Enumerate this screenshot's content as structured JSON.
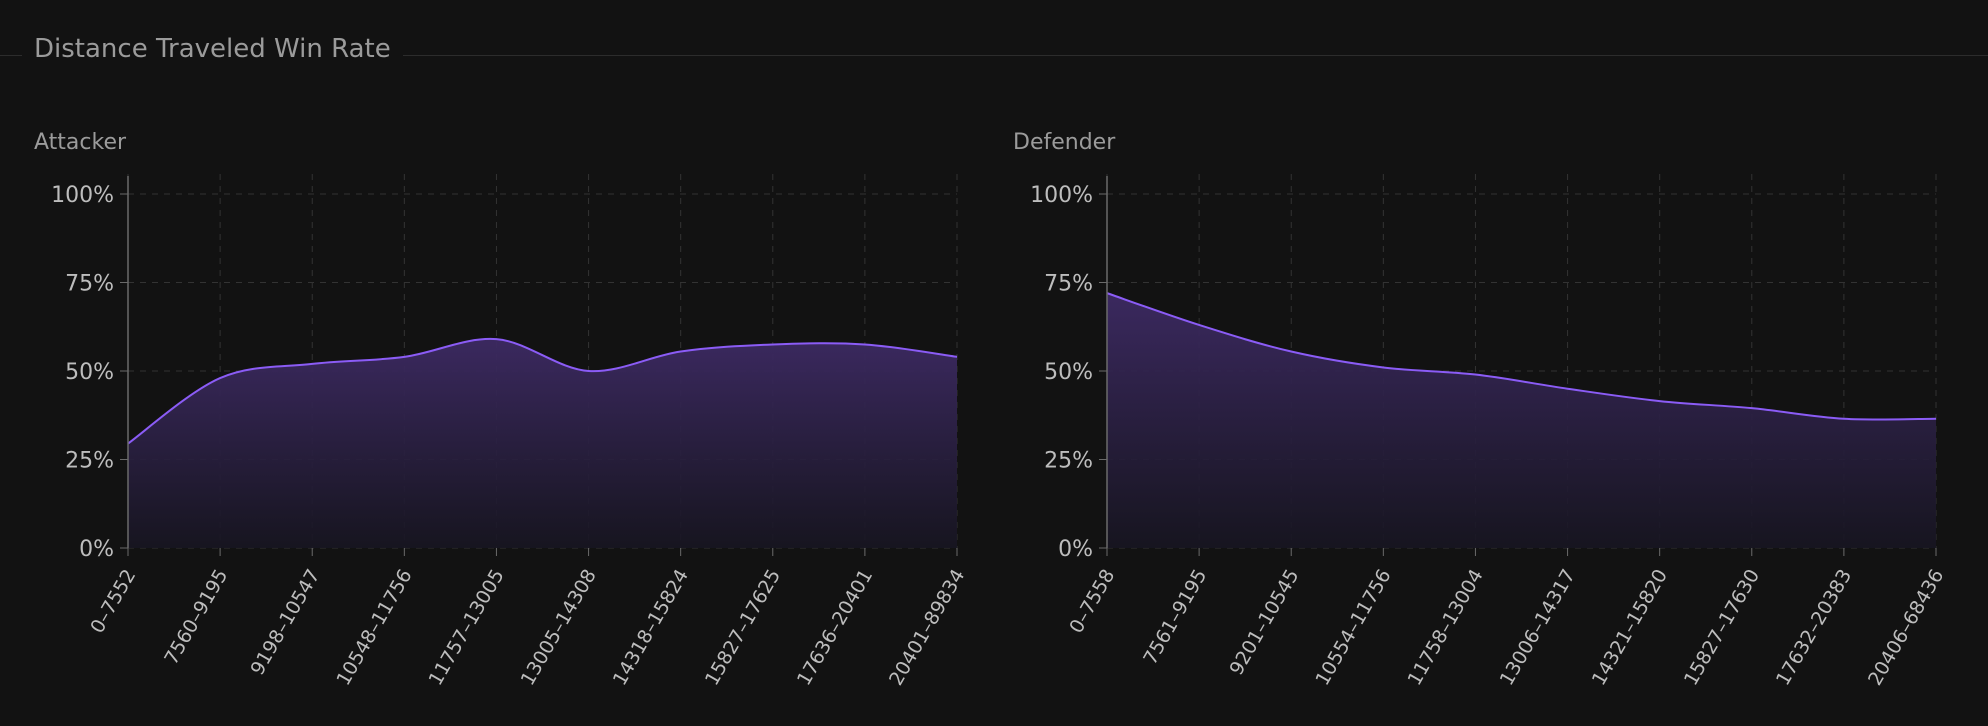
{
  "section": {
    "title": "Distance Traveled Win Rate"
  },
  "colors": {
    "line": "#8b5cf6",
    "fill_top": "#3d2a63",
    "fill_bottom": "#171521",
    "grid": "#333333",
    "axis": "#6a6a6a"
  },
  "chart_data": [
    {
      "type": "area",
      "title": "Attacker",
      "categories": [
        "0–7552",
        "7560–9195",
        "9198–10547",
        "10548–11756",
        "11757–13005",
        "13005–14308",
        "14318–15824",
        "15827–17625",
        "17636–20401",
        "20401–89834"
      ],
      "values": [
        29.5,
        48,
        52,
        54,
        59,
        50,
        55.5,
        57.5,
        57.5,
        54
      ],
      "ylim": [
        0,
        100
      ],
      "yticks": [
        "0%",
        "25%",
        "50%",
        "75%",
        "100%"
      ],
      "grid": true
    },
    {
      "type": "area",
      "title": "Defender",
      "categories": [
        "0–7558",
        "7561–9195",
        "9201–10545",
        "10554–11756",
        "11758–13004",
        "13006–14317",
        "14321–15820",
        "15827–17630",
        "17632–20383",
        "20406–68436"
      ],
      "values": [
        72,
        63,
        55.5,
        51,
        49,
        45,
        41.5,
        39.5,
        36.5,
        36.5
      ],
      "ylim": [
        0,
        100
      ],
      "yticks": [
        "0%",
        "25%",
        "50%",
        "75%",
        "100%"
      ],
      "grid": true
    }
  ]
}
